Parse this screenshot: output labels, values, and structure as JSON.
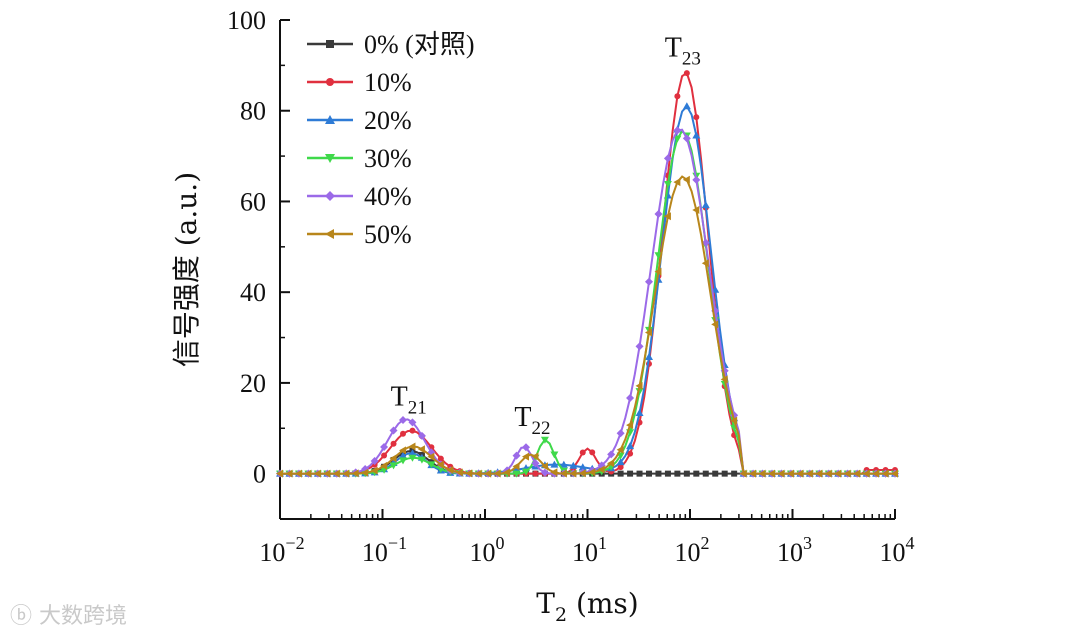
{
  "chart_data": {
    "type": "line",
    "xlabel": "T",
    "xlabel_sub": "2",
    "xlabel_unit": " (ms)",
    "ylabel": "信号强度 (a.u.)",
    "xscale": "log",
    "xlim": [
      0.01,
      10000
    ],
    "ylim": [
      -10,
      100
    ],
    "x_ticks": [
      {
        "value": 0.01,
        "base": "10",
        "exp": "−2"
      },
      {
        "value": 0.1,
        "base": "10",
        "exp": "−1"
      },
      {
        "value": 1,
        "base": "10",
        "exp": "0"
      },
      {
        "value": 10,
        "base": "10",
        "exp": "1"
      },
      {
        "value": 100,
        "base": "10",
        "exp": "2"
      },
      {
        "value": 1000,
        "base": "10",
        "exp": "3"
      },
      {
        "value": 10000,
        "base": "10",
        "exp": "4"
      }
    ],
    "y_ticks": [
      "0",
      "20",
      "40",
      "60",
      "80",
      "100"
    ],
    "legend_position": "top-left",
    "annotations": [
      {
        "base": "T",
        "sub": "21",
        "x": 0.18,
        "y": 15
      },
      {
        "base": "T",
        "sub": "22",
        "x": 2.9,
        "y": 10.5
      },
      {
        "base": "T",
        "sub": "23",
        "x": 85,
        "y": 92
      }
    ],
    "series": [
      {
        "name": "0% (对照)",
        "color": "#3a3a3a",
        "marker": "square",
        "peaks": [
          [
            0.19,
            5,
            0.17
          ],
          [
            0,
            0,
            0.1
          ],
          [
            88,
            0,
            0.25
          ]
        ],
        "range": [
          0.03,
          0.6,
          20,
          320
        ]
      },
      {
        "name": "10%",
        "color": "#e0303f",
        "marker": "circle",
        "peaks": [
          [
            0.19,
            9.5,
            0.2
          ],
          [
            10,
            5.5,
            0.08
          ],
          [
            90,
            88.5,
            0.22
          ]
        ],
        "range": [
          0.03,
          0.6,
          20,
          320
        ]
      },
      {
        "name": "20%",
        "color": "#2e7bd6",
        "marker": "triangle-up",
        "peaks": [
          [
            0.19,
            4.5,
            0.15
          ],
          [
            5,
            2,
            0.3
          ],
          [
            92,
            81,
            0.24
          ]
        ],
        "range": [
          0.03,
          0.45,
          15,
          330
        ]
      },
      {
        "name": "30%",
        "color": "#3fd94a",
        "marker": "triangle-down",
        "peaks": [
          [
            0.2,
            3.5,
            0.17
          ],
          [
            3.9,
            7.5,
            0.08
          ],
          [
            85,
            75.5,
            0.25
          ]
        ],
        "range": [
          0.03,
          0.45,
          20,
          330
        ]
      },
      {
        "name": "40%",
        "color": "#9b6ae8",
        "marker": "diamond",
        "peaks": [
          [
            0.17,
            12,
            0.18
          ],
          [
            2.4,
            6,
            0.08
          ],
          [
            80,
            76,
            0.28
          ]
        ],
        "range": [
          0.03,
          0.6,
          20,
          330
        ]
      },
      {
        "name": "50%",
        "color": "#b8861b",
        "marker": "triangle-left",
        "peaks": [
          [
            0.2,
            6,
            0.18
          ],
          [
            2.8,
            4.2,
            0.1
          ],
          [
            85,
            65.5,
            0.27
          ]
        ],
        "range": [
          0.03,
          0.5,
          20,
          330
        ]
      }
    ]
  },
  "watermark": "大数跨境"
}
